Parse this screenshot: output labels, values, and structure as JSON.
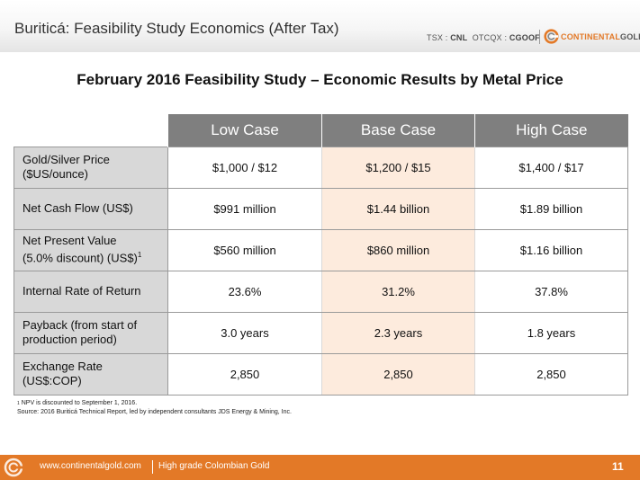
{
  "header": {
    "title": "Buriticá: Feasibility Study Economics (After Tax)",
    "ticker": {
      "tsx_label": "TSX",
      "tsx_symbol": "CNL",
      "otcqx_label": "OTCQX",
      "otcqx_symbol": "CGOOF"
    },
    "brand": {
      "part1": "CONTINENTAL",
      "part2": "GOLD"
    }
  },
  "main_title": "February 2016 Feasibility Study – Economic Results by Metal Price",
  "table": {
    "columns": [
      "Low Case",
      "Base Case",
      "High Case"
    ],
    "rows": [
      {
        "label_line1": "Gold/Silver Price",
        "label_line2": "($US/ounce)",
        "label_sup": "",
        "values": [
          "$1,000 / $12",
          "$1,200 / $15",
          "$1,400 / $17"
        ]
      },
      {
        "label_line1": "Net Cash Flow (US$)",
        "label_line2": "",
        "label_sup": "",
        "values": [
          "$991 million",
          "$1.44 billion",
          "$1.89 billion"
        ]
      },
      {
        "label_line1": "Net Present Value",
        "label_line2": "(5.0% discount) (US$)",
        "label_sup": "1",
        "values": [
          "$560 million",
          "$860 million",
          "$1.16 billion"
        ]
      },
      {
        "label_line1": "Internal Rate of Return",
        "label_line2": "",
        "label_sup": "",
        "values": [
          "23.6%",
          "31.2%",
          "37.8%"
        ]
      },
      {
        "label_line1": "Payback (from start of",
        "label_line2": "production period)",
        "label_sup": "",
        "values": [
          "3.0 years",
          "2.3 years",
          "1.8 years"
        ]
      },
      {
        "label_line1": "Exchange Rate",
        "label_line2": "(US$:COP)",
        "label_sup": "",
        "values": [
          "2,850",
          "2,850",
          "2,850"
        ]
      }
    ]
  },
  "footnotes": {
    "note1_marker": "1",
    "note1": "NPV is discounted to September 1, 2016.",
    "source": "Source: 2016 Buriticá Technical Report, led by independent consultants JDS Energy & Mining, Inc."
  },
  "footer": {
    "url": "www.continentalgold.com",
    "tagline": "High grade Colombian Gold",
    "page_number": "11"
  },
  "colors": {
    "accent": "#e37927",
    "header_cell": "#7f7f7f",
    "label_cell": "#d8d8d8",
    "base_highlight": "#fdebdd"
  },
  "icons": {
    "brand_logo": "continental-gold-logo-icon",
    "footer_logo": "continental-gold-logo-icon"
  }
}
